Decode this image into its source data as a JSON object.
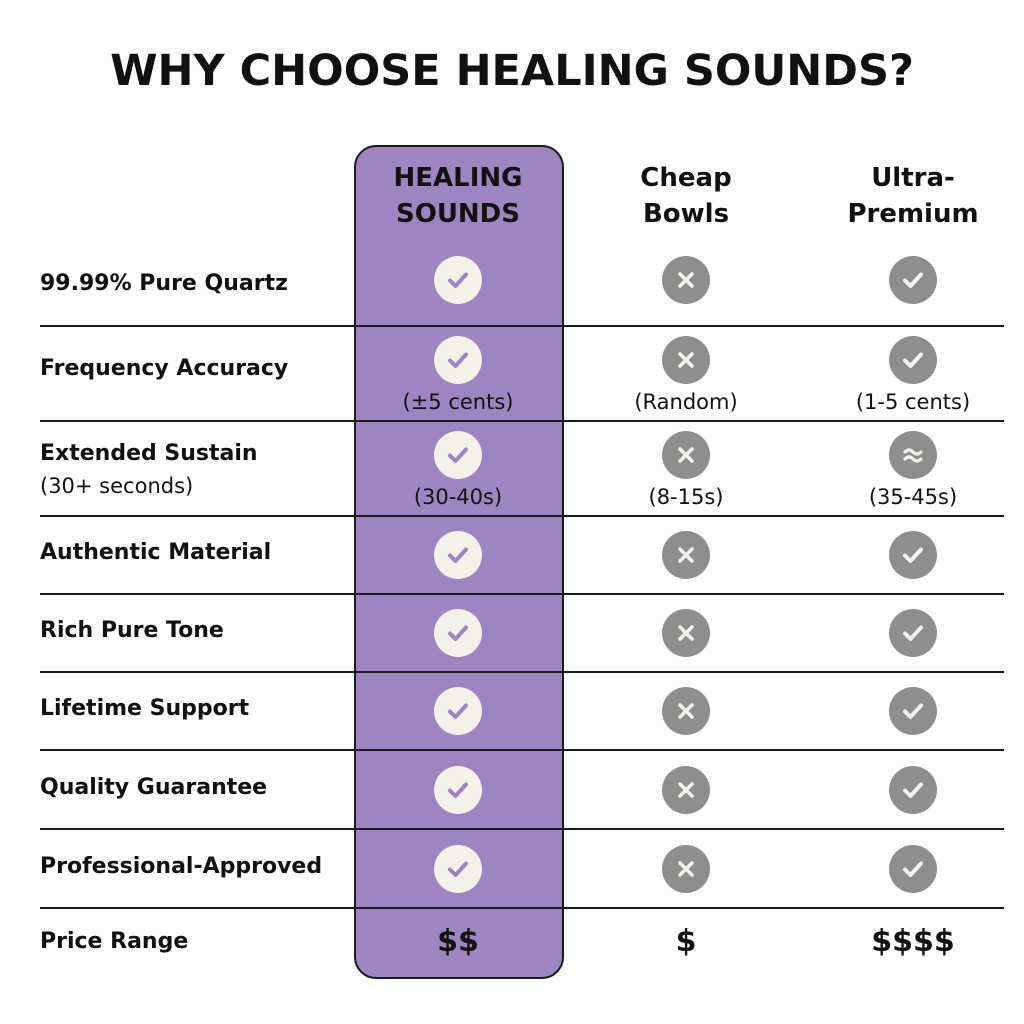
{
  "title": "WHY CHOOSE HEALING SOUNDS?",
  "columns": [
    "HEALING\nSOUNDS",
    "Cheap\nBowls",
    "Ultra-\nPremium"
  ],
  "colors": {
    "highlight": "#9f84c2",
    "icon_gray": "#8e8e8e",
    "icon_light": "#f4f1ea",
    "check_purple": "#9f84c2"
  },
  "rows": [
    {
      "feature": "99.99% Pure Quartz",
      "cells": [
        {
          "icon": "check-icon"
        },
        {
          "icon": "x-icon"
        },
        {
          "icon": "check-icon"
        }
      ]
    },
    {
      "feature": "Frequency Accuracy",
      "cells": [
        {
          "icon": "check-icon",
          "note": "(±5 cents)"
        },
        {
          "icon": "x-icon",
          "note": "(Random)"
        },
        {
          "icon": "check-icon",
          "note": "(1-5 cents)"
        }
      ]
    },
    {
      "feature": "Extended Sustain",
      "sub": "(30+ seconds)",
      "cells": [
        {
          "icon": "check-icon",
          "note": "(30-40s)"
        },
        {
          "icon": "x-icon",
          "note": "(8-15s)"
        },
        {
          "icon": "approx-icon",
          "note": "(35-45s)"
        }
      ]
    },
    {
      "feature": "Authentic Material",
      "cells": [
        {
          "icon": "check-icon"
        },
        {
          "icon": "x-icon"
        },
        {
          "icon": "check-icon"
        }
      ]
    },
    {
      "feature": "Rich Pure Tone",
      "cells": [
        {
          "icon": "check-icon"
        },
        {
          "icon": "x-icon"
        },
        {
          "icon": "check-icon"
        }
      ]
    },
    {
      "feature": "Lifetime Support",
      "cells": [
        {
          "icon": "check-icon"
        },
        {
          "icon": "x-icon"
        },
        {
          "icon": "check-icon"
        }
      ]
    },
    {
      "feature": "Quality Guarantee",
      "cells": [
        {
          "icon": "check-icon"
        },
        {
          "icon": "x-icon"
        },
        {
          "icon": "check-icon"
        }
      ]
    },
    {
      "feature": "Professional-Approved",
      "cells": [
        {
          "icon": "check-icon"
        },
        {
          "icon": "x-icon"
        },
        {
          "icon": "check-icon"
        }
      ]
    },
    {
      "feature": "Price Range",
      "cells": [
        {
          "text": "$$"
        },
        {
          "text": "$"
        },
        {
          "text": "$$$$"
        }
      ]
    }
  ]
}
